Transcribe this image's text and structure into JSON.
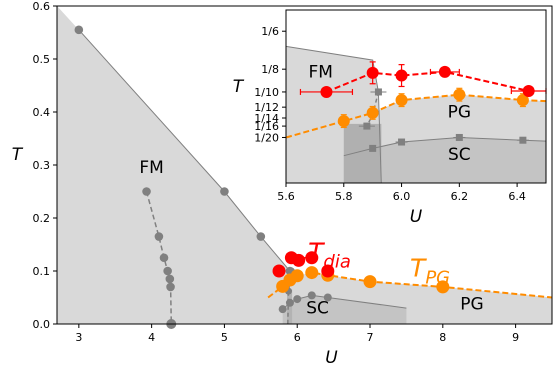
{
  "chart_data": [
    {
      "type": "line",
      "title": "",
      "xlabel": "U",
      "ylabel": "T",
      "xlim": [
        2.7,
        9.5
      ],
      "ylim": [
        0.0,
        0.6
      ],
      "xticks": [
        3,
        4,
        5,
        6,
        7,
        8,
        9
      ],
      "yticks": [
        0.0,
        0.1,
        0.2,
        0.3,
        0.4,
        0.5,
        0.6
      ],
      "xtick_labels": [
        "3",
        "4",
        "5",
        "6",
        "7",
        "8",
        "9"
      ],
      "ytick_labels": [
        "0.0",
        "0.1",
        "0.2",
        "0.3",
        "0.4",
        "0.5",
        "0.6"
      ],
      "grid": false,
      "regions": [
        {
          "label": "FM",
          "label_at": [
            4.0,
            0.285
          ],
          "color": "#d9d9d9"
        },
        {
          "label": "SC",
          "label_at": [
            6.28,
            0.02
          ],
          "color": "#c4c4c4"
        },
        {
          "label": "PG",
          "label_at": [
            8.4,
            0.027
          ],
          "color": "#d9d9d9"
        }
      ],
      "series_labels": [
        {
          "text": "T",
          "sub": "dia",
          "color": "#ff0000",
          "at": [
            6.15,
            0.12
          ]
        },
        {
          "text": "T",
          "sub": "PG",
          "color": "#ff8c00",
          "at": [
            7.55,
            0.09
          ]
        }
      ],
      "series": [
        {
          "role": "fm-boundary",
          "color": "#808080",
          "x": [
            3.0,
            5.0,
            5.5,
            5.9
          ],
          "y": [
            0.555,
            0.25,
            0.165,
            0.1
          ]
        },
        {
          "role": "fm-dashed",
          "color": "#808080",
          "x": [
            3.93,
            4.1,
            4.17,
            4.22,
            4.25,
            4.26,
            4.27
          ],
          "y": [
            0.25,
            0.165,
            0.125,
            0.1,
            0.085,
            0.07,
            0.0
          ]
        },
        {
          "role": "T_dia",
          "color": "#ff0000",
          "x": [
            5.75,
            5.92,
            6.02,
            6.2,
            6.42
          ],
          "y": [
            0.1,
            0.125,
            0.12,
            0.125,
            0.1
          ]
        },
        {
          "role": "T_PG",
          "color": "#ff8c00",
          "x": [
            5.6,
            5.8,
            5.9,
            6.0,
            6.2,
            6.42,
            7.0,
            8.0,
            9.5
          ],
          "y": [
            0.05,
            0.071,
            0.083,
            0.091,
            0.097,
            0.092,
            0.08,
            0.07,
            0.05
          ]
        },
        {
          "role": "SC-boundary",
          "color": "#808080",
          "x": [
            5.8,
            5.9,
            6.0,
            6.2,
            6.42,
            7.5
          ],
          "y": [
            0.028,
            0.04,
            0.047,
            0.054,
            0.05,
            0.03
          ]
        },
        {
          "role": "sc-vertical",
          "color": "#808080",
          "x": [
            5.92,
            5.9,
            5.88,
            5.87
          ],
          "y": [
            0.1,
            0.08,
            0.062,
            0.0
          ]
        }
      ]
    },
    {
      "type": "line",
      "inset": true,
      "title": "",
      "xlabel": "U",
      "ylabel": "T",
      "xlim": [
        5.6,
        6.5
      ],
      "ylim": [
        0.0,
        0.19
      ],
      "xticks": [
        5.6,
        5.8,
        6.0,
        6.2,
        6.4
      ],
      "xtick_labels": [
        "5.6",
        "5.8",
        "6.0",
        "6.2",
        "6.4"
      ],
      "yticks": [
        0.05,
        0.0625,
        0.0714,
        0.0833,
        0.1,
        0.125,
        0.1667
      ],
      "ytick_labels": [
        "1/20",
        "1/16",
        "1/14",
        "1/12",
        "1/10",
        "1/8",
        "1/6"
      ],
      "grid": false,
      "regions": [
        {
          "label": "FM",
          "label_at": [
            5.72,
            0.116
          ],
          "color": "#d9d9d9"
        },
        {
          "label": "PG",
          "label_at": [
            6.2,
            0.072
          ],
          "color": "#d9d9d9"
        },
        {
          "label": "SC",
          "label_at": [
            6.2,
            0.025
          ],
          "color": "#c4c4c4"
        }
      ],
      "series": [
        {
          "role": "FM-boundary",
          "color": "#808080",
          "x": [
            5.6,
            5.9,
            5.92,
            5.93
          ],
          "y": [
            0.15,
            0.135,
            0.1,
            0.0
          ]
        },
        {
          "role": "T_dia",
          "color": "#ff0000",
          "x": [
            5.74,
            5.9,
            6.0,
            6.15,
            6.44
          ],
          "y": [
            0.1,
            0.121,
            0.118,
            0.122,
            0.101
          ],
          "xerr": [
            0.09,
            0.0,
            0.0,
            0.05,
            0.06
          ],
          "yerr": [
            0.0,
            0.012,
            0.012,
            0.0,
            0.0
          ]
        },
        {
          "role": "T_PG",
          "color": "#ff8c00",
          "x": [
            5.6,
            5.8,
            5.9,
            6.0,
            6.2,
            6.42,
            6.5
          ],
          "y": [
            0.05,
            0.068,
            0.077,
            0.091,
            0.097,
            0.091,
            0.09
          ],
          "yerr": [
            0.0,
            0.007,
            0.007,
            0.007,
            0.007,
            0.007,
            0.0
          ]
        },
        {
          "role": "SC-boundary",
          "color": "#808080",
          "x": [
            5.8,
            5.88,
            5.9,
            6.0,
            6.2,
            6.42,
            6.5
          ],
          "y": [
            0.03,
            0.0625,
            0.038,
            0.045,
            0.05,
            0.047,
            0.046
          ],
          "xerr": [
            0.0,
            0.02,
            0.0,
            0.0,
            0.0,
            0.0,
            0.0
          ]
        },
        {
          "role": "vertical-dash",
          "color": "#808080",
          "x": [
            5.92,
            5.9,
            5.88
          ],
          "y": [
            0.1,
            0.075,
            0.0625
          ],
          "xerr": [
            0.02,
            0.0,
            0.0
          ]
        }
      ]
    }
  ]
}
